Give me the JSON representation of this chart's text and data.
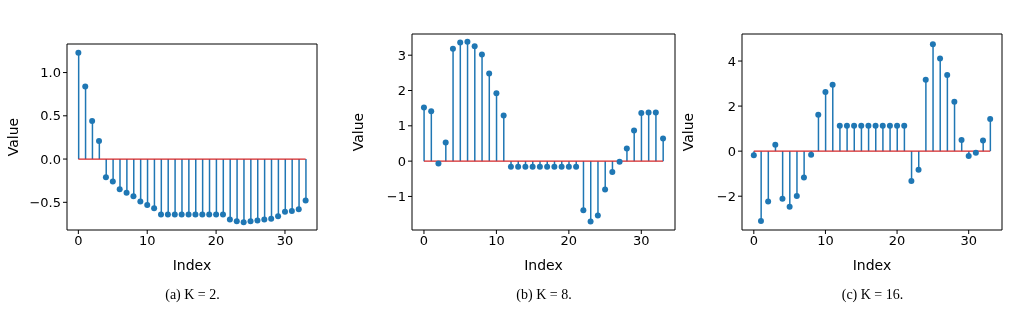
{
  "chart_data": [
    {
      "type": "lollipop",
      "xlabel": "Index",
      "ylabel": "Value",
      "annotations": [
        "(a) K = 2."
      ],
      "marker": "circle",
      "grid": false,
      "color": "#1f77b4",
      "x": [
        0,
        1,
        2,
        3,
        4,
        5,
        6,
        7,
        8,
        9,
        10,
        11,
        12,
        13,
        14,
        15,
        16,
        17,
        18,
        19,
        20,
        21,
        22,
        23,
        24,
        25,
        26,
        27,
        28,
        29,
        30,
        31,
        32,
        33
      ],
      "values": [
        1.23,
        0.84,
        0.44,
        0.21,
        -0.21,
        -0.26,
        -0.35,
        -0.39,
        -0.43,
        -0.49,
        -0.53,
        -0.57,
        -0.64,
        -0.64,
        -0.64,
        -0.64,
        -0.64,
        -0.64,
        -0.64,
        -0.64,
        -0.64,
        -0.64,
        -0.7,
        -0.72,
        -0.73,
        -0.72,
        -0.71,
        -0.7,
        -0.69,
        -0.66,
        -0.61,
        -0.6,
        -0.58,
        -0.48
      ],
      "xlim": [
        -1.65,
        34.65
      ],
      "xticks": [
        0,
        10,
        20,
        30
      ],
      "ylim": [
        -0.82,
        1.33
      ],
      "yticks": [
        {
          "value": -0.5,
          "label": "−0.5"
        },
        {
          "value": 0,
          "label": "0.0"
        },
        0.5,
        {
          "value": 1,
          "label": "1.0"
        }
      ],
      "ref_lines": [
        {
          "axis": "y",
          "value": 0,
          "color": "#d62728"
        }
      ]
    },
    {
      "type": "lollipop",
      "xlabel": "Index",
      "ylabel": "Value",
      "annotations": [
        "(b) K = 8."
      ],
      "marker": "circle",
      "grid": false,
      "color": "#1f77b4",
      "x": [
        0,
        1,
        2,
        3,
        4,
        5,
        6,
        7,
        8,
        9,
        10,
        11,
        12,
        13,
        14,
        15,
        16,
        17,
        18,
        19,
        20,
        21,
        22,
        23,
        24,
        25,
        26,
        27,
        28,
        29,
        30,
        31,
        32,
        33
      ],
      "values": [
        1.52,
        1.41,
        -0.07,
        0.53,
        3.18,
        3.36,
        3.38,
        3.25,
        3.02,
        2.48,
        1.92,
        1.29,
        -0.16,
        -0.16,
        -0.16,
        -0.16,
        -0.16,
        -0.16,
        -0.16,
        -0.16,
        -0.16,
        -0.16,
        -1.39,
        -1.71,
        -1.54,
        -0.8,
        -0.31,
        -0.02,
        0.36,
        0.87,
        1.36,
        1.38,
        1.38,
        0.64
      ],
      "xlim": [
        -1.65,
        34.65
      ],
      "xticks": [
        0,
        10,
        20,
        30
      ],
      "ylim": [
        -1.95,
        3.6
      ],
      "yticks": [
        {
          "value": -1,
          "label": "−1"
        },
        0,
        1,
        2,
        3
      ],
      "ref_lines": [
        {
          "axis": "y",
          "value": 0,
          "color": "#d62728"
        }
      ]
    },
    {
      "type": "lollipop",
      "xlabel": "Index",
      "ylabel": "Value",
      "annotations": [
        "(c) K = 16."
      ],
      "marker": "circle",
      "grid": false,
      "color": "#1f77b4",
      "x": [
        0,
        1,
        2,
        3,
        4,
        5,
        6,
        7,
        8,
        9,
        10,
        11,
        12,
        13,
        14,
        15,
        16,
        17,
        18,
        19,
        20,
        21,
        22,
        23,
        24,
        25,
        26,
        27,
        28,
        29,
        30,
        31,
        32,
        33
      ],
      "values": [
        -0.18,
        -3.1,
        -2.24,
        0.28,
        -2.11,
        -2.47,
        -1.99,
        -1.17,
        -0.16,
        1.62,
        2.63,
        2.95,
        1.13,
        1.13,
        1.13,
        1.13,
        1.13,
        1.13,
        1.13,
        1.13,
        1.13,
        1.13,
        -1.33,
        -0.83,
        3.17,
        4.75,
        4.11,
        3.38,
        2.19,
        0.5,
        -0.22,
        -0.07,
        0.47,
        1.43
      ],
      "xlim": [
        -1.65,
        34.65
      ],
      "xticks": [
        0,
        10,
        20,
        30
      ],
      "ylim": [
        -3.5,
        5.2
      ],
      "yticks": [
        {
          "value": -2,
          "label": "−2"
        },
        0,
        2,
        4
      ],
      "ref_lines": [
        {
          "axis": "y",
          "value": 0,
          "color": "#d62728"
        }
      ]
    }
  ]
}
